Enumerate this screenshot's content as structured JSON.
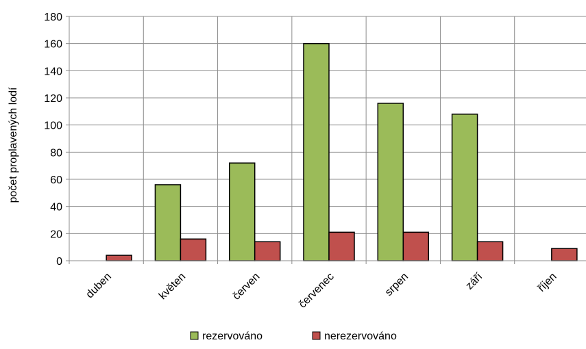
{
  "chart_data": {
    "type": "bar",
    "title": "",
    "xlabel": "",
    "ylabel": "počet proplavených lodí",
    "categories": [
      "duben",
      "květen",
      "červen",
      "červenec",
      "srpen",
      "září",
      "říjen"
    ],
    "series": [
      {
        "name": "rezervováno",
        "values": [
          0,
          56,
          72,
          160,
          116,
          108,
          0
        ],
        "color": "#9BBB59"
      },
      {
        "name": "nerezervováno",
        "values": [
          4,
          16,
          14,
          21,
          21,
          14,
          9
        ],
        "color": "#C0504D"
      }
    ],
    "ylim": [
      0,
      180
    ],
    "yticks": [
      0,
      20,
      40,
      60,
      80,
      100,
      120,
      140,
      160,
      180
    ],
    "grid": true,
    "legend_position": "bottom"
  }
}
